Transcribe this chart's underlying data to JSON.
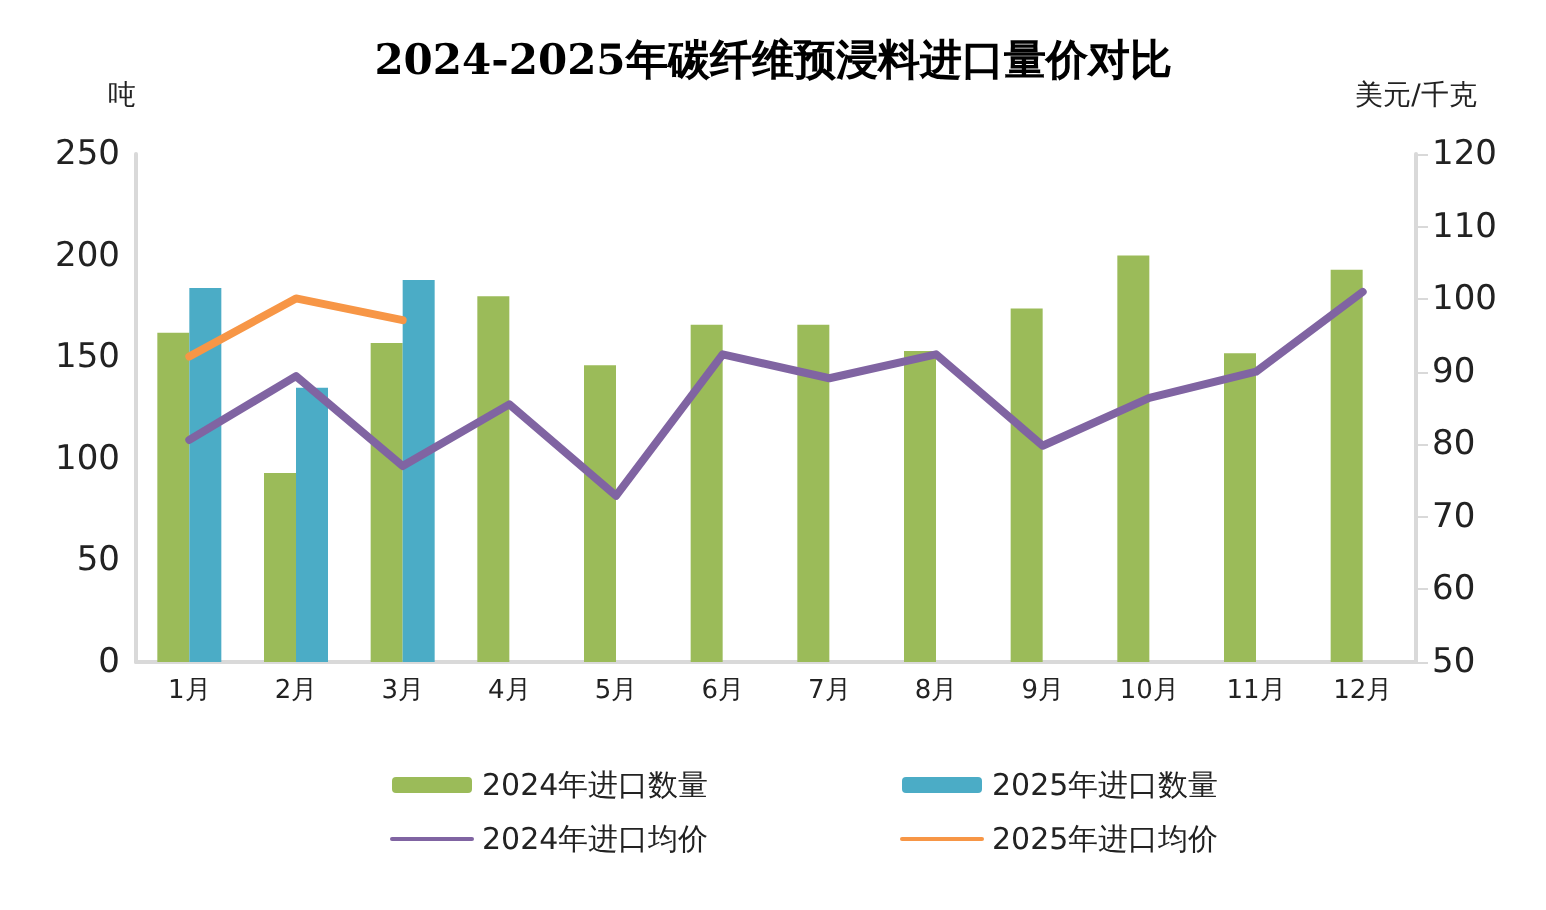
{
  "chart_data": {
    "type": "bar",
    "title": "2024-2025年碳纤维预浸料进口量价对比",
    "ylabel": "吨",
    "y2label": "美元/千克",
    "categories": [
      "1月",
      "2月",
      "3月",
      "4月",
      "5月",
      "6月",
      "7月",
      "8月",
      "9月",
      "10月",
      "11月",
      "12月"
    ],
    "series": [
      {
        "name": "2024年进口数量",
        "color": "#9bbb59",
        "values": [
          162,
          93,
          157,
          180,
          146,
          166,
          166,
          153,
          174,
          200,
          152,
          193
        ]
      },
      {
        "name": "2025年进口数量",
        "color": "#4bacc6",
        "values": [
          184,
          135,
          188,
          null,
          null,
          null,
          null,
          null,
          null,
          null,
          null,
          null
        ]
      },
      {
        "name": "2024年进口均价",
        "type": "line",
        "axis": "y2",
        "color": "#8064a2",
        "values": [
          80.6,
          89.4,
          77,
          85.5,
          72.9,
          92.4,
          89.1,
          92.4,
          79.8,
          86.4,
          90,
          101
        ]
      },
      {
        "name": "2025年进口均价",
        "type": "line",
        "axis": "y2",
        "color": "#f79646",
        "values": [
          92.1,
          100.1,
          97.1,
          null,
          null,
          null,
          null,
          null,
          null,
          null,
          null,
          null
        ]
      }
    ],
    "ylim": [
      0,
      250
    ],
    "yticks": [
      0,
      50,
      100,
      150,
      200,
      250
    ],
    "y2lim": [
      50,
      120
    ],
    "y2ticks": [
      50,
      60,
      70,
      80,
      90,
      100,
      110,
      120
    ],
    "grid": false,
    "legend": "bottom",
    "marker": "none"
  }
}
